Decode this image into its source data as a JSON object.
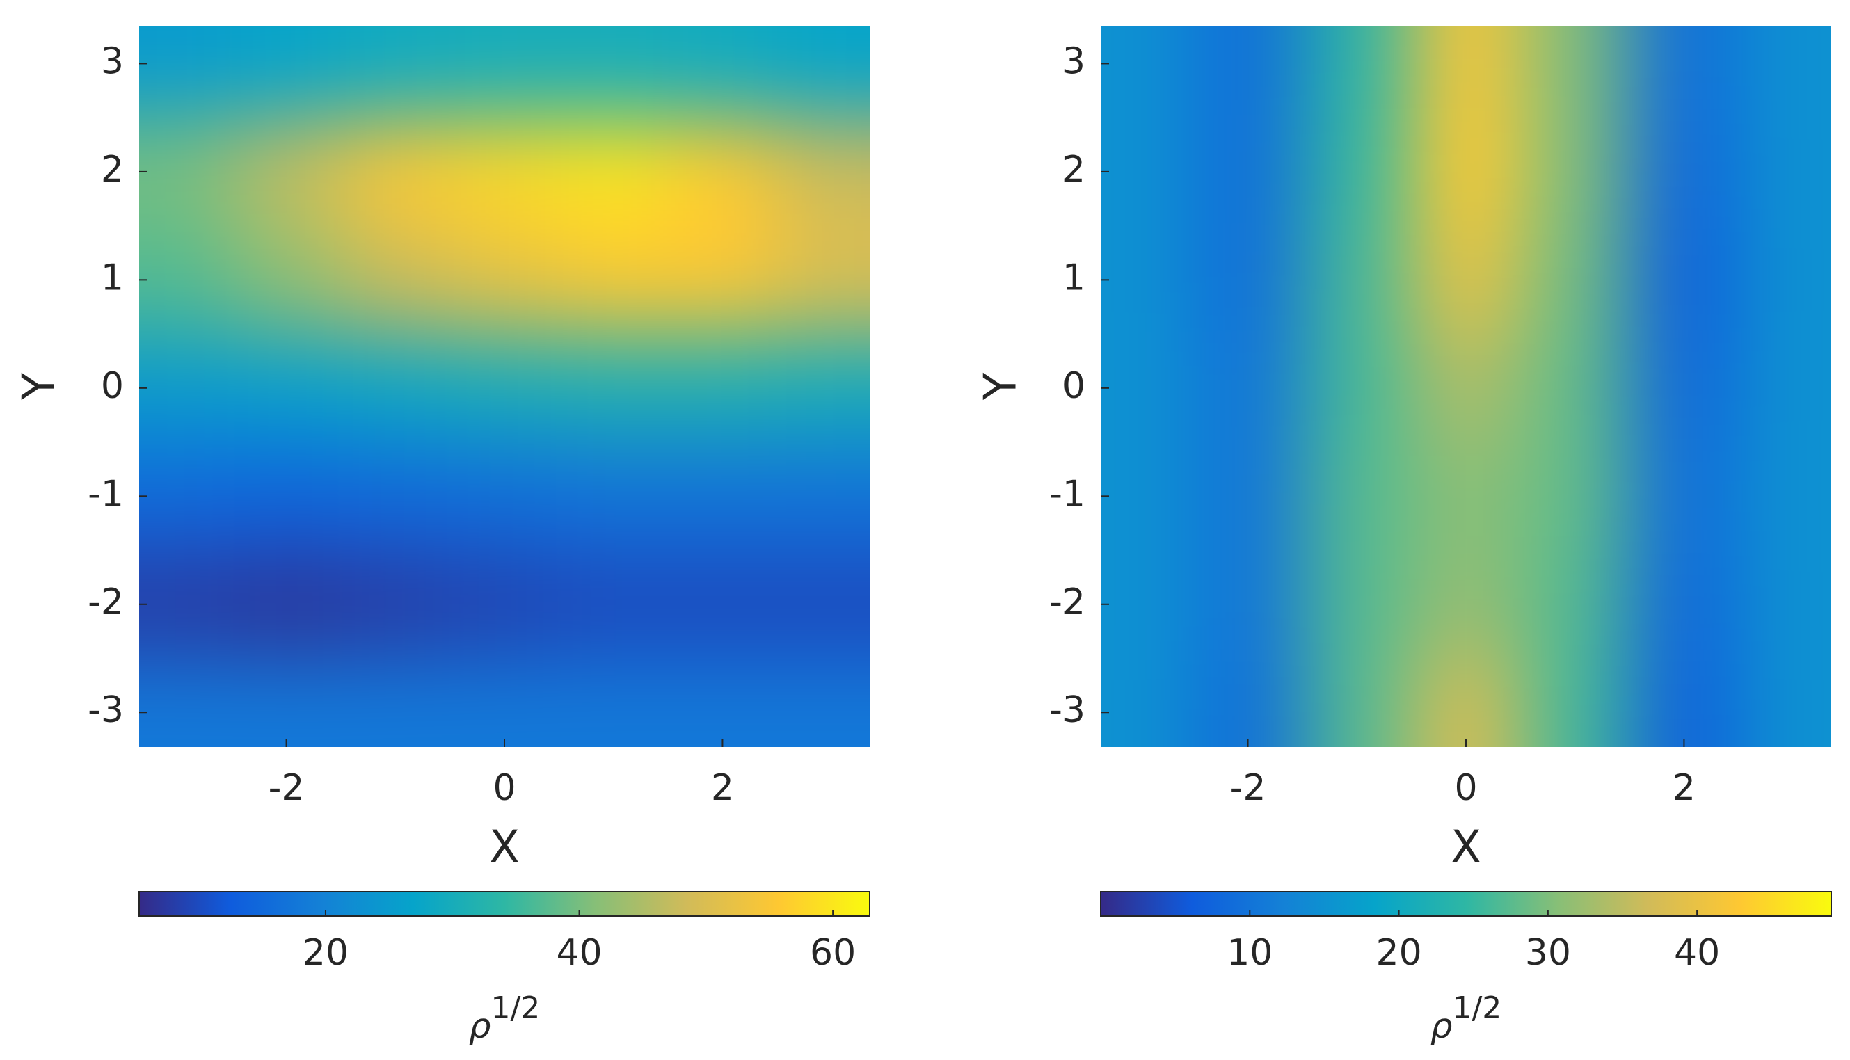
{
  "chart_data": [
    {
      "type": "heatmap",
      "xlabel": "X",
      "ylabel": "Y",
      "x": [
        -3,
        -2,
        -1,
        0,
        1,
        2,
        3
      ],
      "y": [
        3,
        2,
        1,
        0,
        -1,
        -2,
        -3
      ],
      "z": [
        [
          25,
          27,
          29,
          30,
          30,
          29,
          27
        ],
        [
          40,
          47,
          55,
          58,
          60,
          56,
          48
        ],
        [
          37,
          42,
          48,
          52,
          55,
          55,
          50
        ],
        [
          25,
          26,
          28,
          30,
          31,
          31,
          30
        ],
        [
          15,
          14,
          15,
          16,
          17,
          17,
          17
        ],
        [
          8,
          7,
          8,
          9,
          10,
          10,
          10
        ],
        [
          18,
          18,
          18,
          18,
          18,
          18,
          18
        ]
      ],
      "xlim": [
        -3.35,
        3.35
      ],
      "ylim": [
        -3.32,
        3.35
      ],
      "xticks": [
        -2,
        0,
        2
      ],
      "yticks": [
        -3,
        -2,
        -1,
        0,
        1,
        2,
        3
      ],
      "clim": [
        5.3,
        62.9
      ],
      "cticks": [
        20,
        40,
        60
      ],
      "colormap": [
        "#352a87",
        "#0f5cdd",
        "#1481d6",
        "#06a4ca",
        "#2eb7a4",
        "#87bf77",
        "#d1bb59",
        "#fec832",
        "#f9fb0e"
      ],
      "colorbar_label": "ρ",
      "colorbar_label_sup": "1/2"
    },
    {
      "type": "heatmap",
      "xlabel": "X",
      "ylabel": "Y",
      "x": [
        -3,
        -2,
        -1,
        0,
        1,
        2,
        3
      ],
      "y": [
        3,
        2,
        1,
        0,
        -1,
        -2,
        -3
      ],
      "z": [
        [
          15,
          9,
          24,
          42,
          30,
          9,
          15
        ],
        [
          15,
          9,
          25,
          43,
          30,
          8,
          15
        ],
        [
          15,
          9,
          26,
          40,
          29,
          7,
          15
        ],
        [
          15,
          10,
          26,
          34,
          28,
          8,
          15
        ],
        [
          15,
          10,
          27,
          31,
          28,
          9,
          15
        ],
        [
          15,
          10,
          27,
          32,
          27,
          8,
          15
        ],
        [
          15,
          9,
          27,
          38,
          26,
          7,
          15
        ]
      ],
      "xlim": [
        -3.35,
        3.35
      ],
      "ylim": [
        -3.32,
        3.35
      ],
      "xticks": [
        -2,
        0,
        2
      ],
      "yticks": [
        -3,
        -2,
        -1,
        0,
        1,
        2,
        3
      ],
      "clim": [
        0,
        49
      ],
      "cticks": [
        10,
        20,
        30,
        40
      ],
      "colormap": [
        "#352a87",
        "#0f5cdd",
        "#1481d6",
        "#06a4ca",
        "#2eb7a4",
        "#87bf77",
        "#d1bb59",
        "#fec832",
        "#f9fb0e"
      ],
      "colorbar_label": "ρ",
      "colorbar_label_sup": "1/2"
    }
  ]
}
